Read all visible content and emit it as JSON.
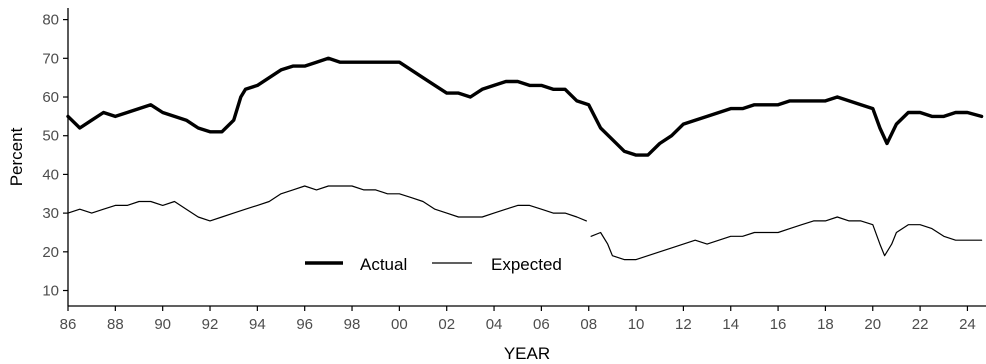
{
  "chart_data": {
    "type": "line",
    "title": "",
    "xlabel": "YEAR",
    "ylabel": "Percent",
    "xlim": [
      1986,
      2024.7
    ],
    "ylim": [
      6,
      83
    ],
    "xticks": [
      1986,
      1988,
      1990,
      1992,
      1994,
      1996,
      1998,
      2000,
      2002,
      2004,
      2006,
      2008,
      2010,
      2012,
      2014,
      2016,
      2018,
      2020,
      2022,
      2024
    ],
    "xtick_labels": [
      "86",
      "88",
      "90",
      "92",
      "94",
      "96",
      "98",
      "00",
      "02",
      "04",
      "06",
      "08",
      "10",
      "12",
      "14",
      "16",
      "18",
      "20",
      "22",
      "24"
    ],
    "yticks": [
      10,
      20,
      30,
      40,
      50,
      60,
      70,
      80
    ],
    "ytick_labels": [
      "10",
      "20",
      "30",
      "40",
      "50",
      "60",
      "70",
      "80"
    ],
    "grid": false,
    "legend": {
      "placement": "bottom-center",
      "labels": [
        "Actual",
        "Expected"
      ]
    },
    "series": [
      {
        "name": "Actual",
        "line_width": "thick",
        "color": "#000000",
        "segments": [
          [
            [
              1986.0,
              55
            ],
            [
              1986.5,
              52
            ],
            [
              1987.0,
              54
            ],
            [
              1987.5,
              56
            ],
            [
              1988.0,
              55
            ],
            [
              1988.5,
              56
            ],
            [
              1989.0,
              57
            ],
            [
              1989.5,
              58
            ],
            [
              1990.0,
              56
            ],
            [
              1990.5,
              55
            ],
            [
              1991.0,
              54
            ],
            [
              1991.5,
              52
            ],
            [
              1992.0,
              51
            ],
            [
              1992.5,
              51
            ],
            [
              1993.0,
              54
            ],
            [
              1993.3,
              60
            ],
            [
              1993.5,
              62
            ],
            [
              1994.0,
              63
            ],
            [
              1994.5,
              65
            ],
            [
              1995.0,
              67
            ],
            [
              1995.5,
              68
            ],
            [
              1996.0,
              68
            ],
            [
              1996.5,
              69
            ],
            [
              1997.0,
              70
            ],
            [
              1997.5,
              69
            ],
            [
              1998.0,
              69
            ],
            [
              1998.5,
              69
            ],
            [
              1999.0,
              69
            ],
            [
              1999.5,
              69
            ],
            [
              2000.0,
              69
            ],
            [
              2000.5,
              67
            ],
            [
              2001.0,
              65
            ],
            [
              2001.5,
              63
            ],
            [
              2002.0,
              61
            ],
            [
              2002.5,
              61
            ],
            [
              2003.0,
              60
            ],
            [
              2003.5,
              62
            ],
            [
              2004.0,
              63
            ],
            [
              2004.5,
              64
            ],
            [
              2005.0,
              64
            ],
            [
              2005.5,
              63
            ],
            [
              2006.0,
              63
            ],
            [
              2006.5,
              62
            ],
            [
              2007.0,
              62
            ],
            [
              2007.5,
              59
            ],
            [
              2008.0,
              58
            ],
            [
              2008.5,
              52
            ],
            [
              2009.0,
              49
            ],
            [
              2009.5,
              46
            ],
            [
              2010.0,
              45
            ],
            [
              2010.5,
              45
            ],
            [
              2011.0,
              48
            ],
            [
              2011.5,
              50
            ],
            [
              2012.0,
              53
            ],
            [
              2012.5,
              54
            ],
            [
              2013.0,
              55
            ],
            [
              2013.5,
              56
            ],
            [
              2014.0,
              57
            ],
            [
              2014.5,
              57
            ],
            [
              2015.0,
              58
            ],
            [
              2015.5,
              58
            ],
            [
              2016.0,
              58
            ],
            [
              2016.5,
              59
            ],
            [
              2017.0,
              59
            ],
            [
              2017.5,
              59
            ],
            [
              2018.0,
              59
            ],
            [
              2018.5,
              60
            ],
            [
              2019.0,
              59
            ],
            [
              2019.5,
              58
            ],
            [
              2020.0,
              57
            ],
            [
              2020.3,
              52
            ],
            [
              2020.6,
              48
            ],
            [
              2021.0,
              53
            ],
            [
              2021.5,
              56
            ],
            [
              2022.0,
              56
            ],
            [
              2022.5,
              55
            ],
            [
              2023.0,
              55
            ],
            [
              2023.5,
              56
            ],
            [
              2024.0,
              56
            ],
            [
              2024.6,
              55
            ]
          ]
        ]
      },
      {
        "name": "Expected",
        "line_width": "thin",
        "color": "#000000",
        "segments": [
          [
            [
              1986.0,
              30
            ],
            [
              1986.5,
              31
            ],
            [
              1987.0,
              30
            ],
            [
              1987.5,
              31
            ],
            [
              1988.0,
              32
            ],
            [
              1988.5,
              32
            ],
            [
              1989.0,
              33
            ],
            [
              1989.5,
              33
            ],
            [
              1990.0,
              32
            ],
            [
              1990.5,
              33
            ],
            [
              1991.0,
              31
            ],
            [
              1991.5,
              29
            ],
            [
              1992.0,
              28
            ],
            [
              1992.5,
              29
            ],
            [
              1993.0,
              30
            ],
            [
              1993.5,
              31
            ],
            [
              1994.0,
              32
            ],
            [
              1994.5,
              33
            ],
            [
              1995.0,
              35
            ],
            [
              1995.5,
              36
            ],
            [
              1996.0,
              37
            ],
            [
              1996.5,
              36
            ],
            [
              1997.0,
              37
            ],
            [
              1997.5,
              37
            ],
            [
              1998.0,
              37
            ],
            [
              1998.5,
              36
            ],
            [
              1999.0,
              36
            ],
            [
              1999.5,
              35
            ],
            [
              2000.0,
              35
            ],
            [
              2000.5,
              34
            ],
            [
              2001.0,
              33
            ],
            [
              2001.5,
              31
            ],
            [
              2002.0,
              30
            ],
            [
              2002.5,
              29
            ],
            [
              2003.0,
              29
            ],
            [
              2003.5,
              29
            ],
            [
              2004.0,
              30
            ],
            [
              2004.5,
              31
            ],
            [
              2005.0,
              32
            ],
            [
              2005.5,
              32
            ],
            [
              2006.0,
              31
            ],
            [
              2006.5,
              30
            ],
            [
              2007.0,
              30
            ],
            [
              2007.5,
              29
            ],
            [
              2007.9,
              28
            ]
          ],
          [
            [
              2008.1,
              24
            ],
            [
              2008.5,
              25
            ],
            [
              2008.8,
              22
            ],
            [
              2009.0,
              19
            ],
            [
              2009.5,
              18
            ],
            [
              2010.0,
              18
            ],
            [
              2010.5,
              19
            ],
            [
              2011.0,
              20
            ],
            [
              2011.5,
              21
            ],
            [
              2012.0,
              22
            ],
            [
              2012.5,
              23
            ],
            [
              2013.0,
              22
            ],
            [
              2013.5,
              23
            ],
            [
              2014.0,
              24
            ],
            [
              2014.5,
              24
            ],
            [
              2015.0,
              25
            ],
            [
              2015.5,
              25
            ],
            [
              2016.0,
              25
            ],
            [
              2016.5,
              26
            ],
            [
              2017.0,
              27
            ],
            [
              2017.5,
              28
            ],
            [
              2018.0,
              28
            ],
            [
              2018.5,
              29
            ],
            [
              2019.0,
              28
            ],
            [
              2019.5,
              28
            ],
            [
              2020.0,
              27
            ],
            [
              2020.3,
              22
            ],
            [
              2020.5,
              19
            ],
            [
              2020.8,
              22
            ],
            [
              2021.0,
              25
            ],
            [
              2021.5,
              27
            ],
            [
              2022.0,
              27
            ],
            [
              2022.5,
              26
            ],
            [
              2023.0,
              24
            ],
            [
              2023.5,
              23
            ],
            [
              2024.0,
              23
            ],
            [
              2024.6,
              23
            ]
          ]
        ]
      }
    ]
  }
}
